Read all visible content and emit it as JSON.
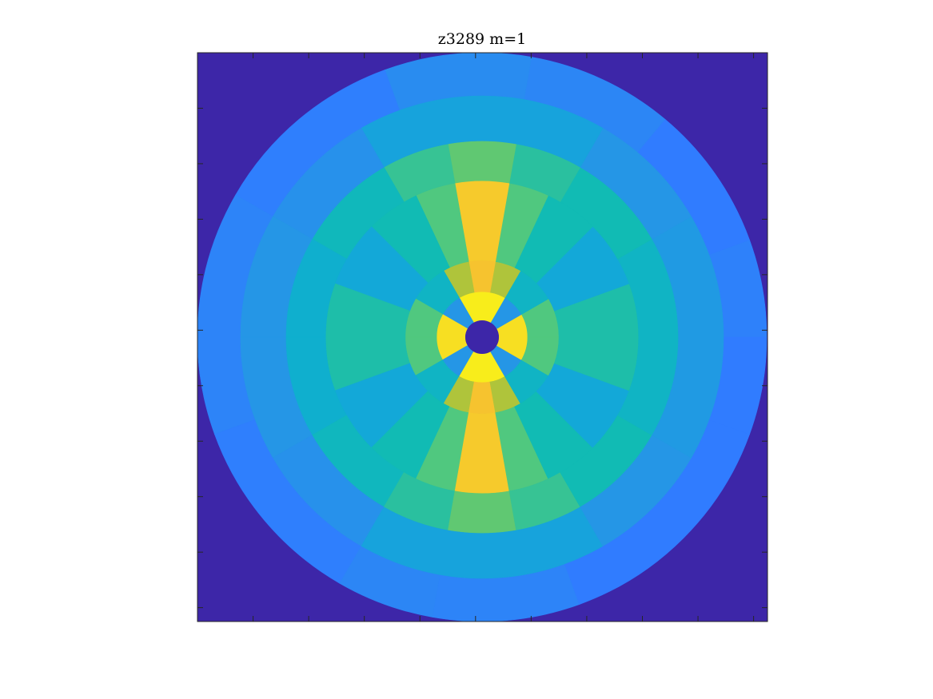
{
  "chart_data": {
    "type": "heatmap",
    "subtype": "polar-segmented",
    "title": "z3289 m=1",
    "xlabel": "",
    "ylabel": "",
    "grid": false,
    "ticks": {
      "x_count": 10,
      "y_count": 10,
      "labels_shown": false
    },
    "colormap": "parula",
    "background_color": "#3D26A8",
    "rings": [
      {
        "ring": 1,
        "r_inner": 0.0,
        "r_outer": 0.06,
        "segments": [
          {
            "start_deg": 0,
            "end_deg": 360,
            "value": 0.0
          }
        ]
      },
      {
        "ring": 2,
        "r_inner": 0.06,
        "r_outer": 0.16,
        "segments": [
          {
            "start_deg": 0,
            "end_deg": 30,
            "value": 0.96
          },
          {
            "start_deg": 30,
            "end_deg": 60,
            "value": 0.4
          },
          {
            "start_deg": 60,
            "end_deg": 120,
            "value": 0.98
          },
          {
            "start_deg": 120,
            "end_deg": 150,
            "value": 0.4
          },
          {
            "start_deg": 150,
            "end_deg": 180,
            "value": 0.96
          },
          {
            "start_deg": 180,
            "end_deg": 210,
            "value": 0.96
          },
          {
            "start_deg": 210,
            "end_deg": 240,
            "value": 0.4
          },
          {
            "start_deg": 240,
            "end_deg": 300,
            "value": 0.98
          },
          {
            "start_deg": 300,
            "end_deg": 330,
            "value": 0.4
          },
          {
            "start_deg": 330,
            "end_deg": 360,
            "value": 0.96
          }
        ]
      },
      {
        "ring": 3,
        "r_inner": 0.16,
        "r_outer": 0.27,
        "segments": [
          {
            "start_deg": 0,
            "end_deg": 30,
            "value": 0.7
          },
          {
            "start_deg": 30,
            "end_deg": 60,
            "value": 0.55
          },
          {
            "start_deg": 60,
            "end_deg": 80,
            "value": 0.82
          },
          {
            "start_deg": 80,
            "end_deg": 100,
            "value": 0.92
          },
          {
            "start_deg": 100,
            "end_deg": 120,
            "value": 0.82
          },
          {
            "start_deg": 120,
            "end_deg": 150,
            "value": 0.55
          },
          {
            "start_deg": 150,
            "end_deg": 180,
            "value": 0.7
          },
          {
            "start_deg": 180,
            "end_deg": 210,
            "value": 0.7
          },
          {
            "start_deg": 210,
            "end_deg": 240,
            "value": 0.55
          },
          {
            "start_deg": 240,
            "end_deg": 260,
            "value": 0.82
          },
          {
            "start_deg": 260,
            "end_deg": 280,
            "value": 0.92
          },
          {
            "start_deg": 280,
            "end_deg": 300,
            "value": 0.82
          },
          {
            "start_deg": 300,
            "end_deg": 330,
            "value": 0.55
          },
          {
            "start_deg": 330,
            "end_deg": 360,
            "value": 0.7
          }
        ]
      },
      {
        "ring": 4,
        "r_inner": 0.27,
        "r_outer": 0.55,
        "segments": [
          {
            "start_deg": 0,
            "end_deg": 20,
            "value": 0.62
          },
          {
            "start_deg": 20,
            "end_deg": 45,
            "value": 0.48
          },
          {
            "start_deg": 45,
            "end_deg": 65,
            "value": 0.6
          },
          {
            "start_deg": 65,
            "end_deg": 80,
            "value": 0.7
          },
          {
            "start_deg": 80,
            "end_deg": 100,
            "value": 0.93
          },
          {
            "start_deg": 100,
            "end_deg": 115,
            "value": 0.7
          },
          {
            "start_deg": 115,
            "end_deg": 135,
            "value": 0.6
          },
          {
            "start_deg": 135,
            "end_deg": 160,
            "value": 0.48
          },
          {
            "start_deg": 160,
            "end_deg": 180,
            "value": 0.62
          },
          {
            "start_deg": 180,
            "end_deg": 200,
            "value": 0.62
          },
          {
            "start_deg": 200,
            "end_deg": 225,
            "value": 0.48
          },
          {
            "start_deg": 225,
            "end_deg": 245,
            "value": 0.6
          },
          {
            "start_deg": 245,
            "end_deg": 260,
            "value": 0.7
          },
          {
            "start_deg": 260,
            "end_deg": 280,
            "value": 0.93
          },
          {
            "start_deg": 280,
            "end_deg": 295,
            "value": 0.7
          },
          {
            "start_deg": 295,
            "end_deg": 315,
            "value": 0.6
          },
          {
            "start_deg": 315,
            "end_deg": 340,
            "value": 0.48
          },
          {
            "start_deg": 340,
            "end_deg": 360,
            "value": 0.62
          }
        ]
      },
      {
        "ring": 5,
        "r_inner": 0.55,
        "r_outer": 0.69,
        "segments": [
          {
            "start_deg": 0,
            "end_deg": 30,
            "value": 0.55
          },
          {
            "start_deg": 30,
            "end_deg": 60,
            "value": 0.6
          },
          {
            "start_deg": 60,
            "end_deg": 80,
            "value": 0.64
          },
          {
            "start_deg": 80,
            "end_deg": 100,
            "value": 0.72
          },
          {
            "start_deg": 100,
            "end_deg": 120,
            "value": 0.66
          },
          {
            "start_deg": 120,
            "end_deg": 150,
            "value": 0.58
          },
          {
            "start_deg": 150,
            "end_deg": 180,
            "value": 0.52
          },
          {
            "start_deg": 180,
            "end_deg": 210,
            "value": 0.52
          },
          {
            "start_deg": 210,
            "end_deg": 240,
            "value": 0.57
          },
          {
            "start_deg": 240,
            "end_deg": 260,
            "value": 0.64
          },
          {
            "start_deg": 260,
            "end_deg": 280,
            "value": 0.72
          },
          {
            "start_deg": 280,
            "end_deg": 300,
            "value": 0.66
          },
          {
            "start_deg": 300,
            "end_deg": 330,
            "value": 0.6
          },
          {
            "start_deg": 330,
            "end_deg": 360,
            "value": 0.55
          }
        ]
      },
      {
        "ring": 6,
        "r_inner": 0.69,
        "r_outer": 0.85,
        "segments": [
          {
            "start_deg": 0,
            "end_deg": 30,
            "value": 0.42
          },
          {
            "start_deg": 30,
            "end_deg": 60,
            "value": 0.4
          },
          {
            "start_deg": 60,
            "end_deg": 120,
            "value": 0.46
          },
          {
            "start_deg": 120,
            "end_deg": 150,
            "value": 0.38
          },
          {
            "start_deg": 150,
            "end_deg": 180,
            "value": 0.4
          },
          {
            "start_deg": 180,
            "end_deg": 210,
            "value": 0.4
          },
          {
            "start_deg": 210,
            "end_deg": 240,
            "value": 0.38
          },
          {
            "start_deg": 240,
            "end_deg": 300,
            "value": 0.46
          },
          {
            "start_deg": 300,
            "end_deg": 330,
            "value": 0.4
          },
          {
            "start_deg": 330,
            "end_deg": 360,
            "value": 0.42
          }
        ]
      },
      {
        "ring": 7,
        "r_inner": 0.85,
        "r_outer": 1.0,
        "segments": [
          {
            "start_deg": 0,
            "end_deg": 20,
            "value": 0.32
          },
          {
            "start_deg": 20,
            "end_deg": 50,
            "value": 0.3
          },
          {
            "start_deg": 50,
            "end_deg": 80,
            "value": 0.34
          },
          {
            "start_deg": 80,
            "end_deg": 110,
            "value": 0.36
          },
          {
            "start_deg": 110,
            "end_deg": 150,
            "value": 0.31
          },
          {
            "start_deg": 150,
            "end_deg": 200,
            "value": 0.33
          },
          {
            "start_deg": 200,
            "end_deg": 240,
            "value": 0.31
          },
          {
            "start_deg": 240,
            "end_deg": 260,
            "value": 0.34
          },
          {
            "start_deg": 260,
            "end_deg": 290,
            "value": 0.33
          },
          {
            "start_deg": 290,
            "end_deg": 340,
            "value": 0.3
          },
          {
            "start_deg": 340,
            "end_deg": 360,
            "value": 0.3
          }
        ]
      }
    ]
  }
}
